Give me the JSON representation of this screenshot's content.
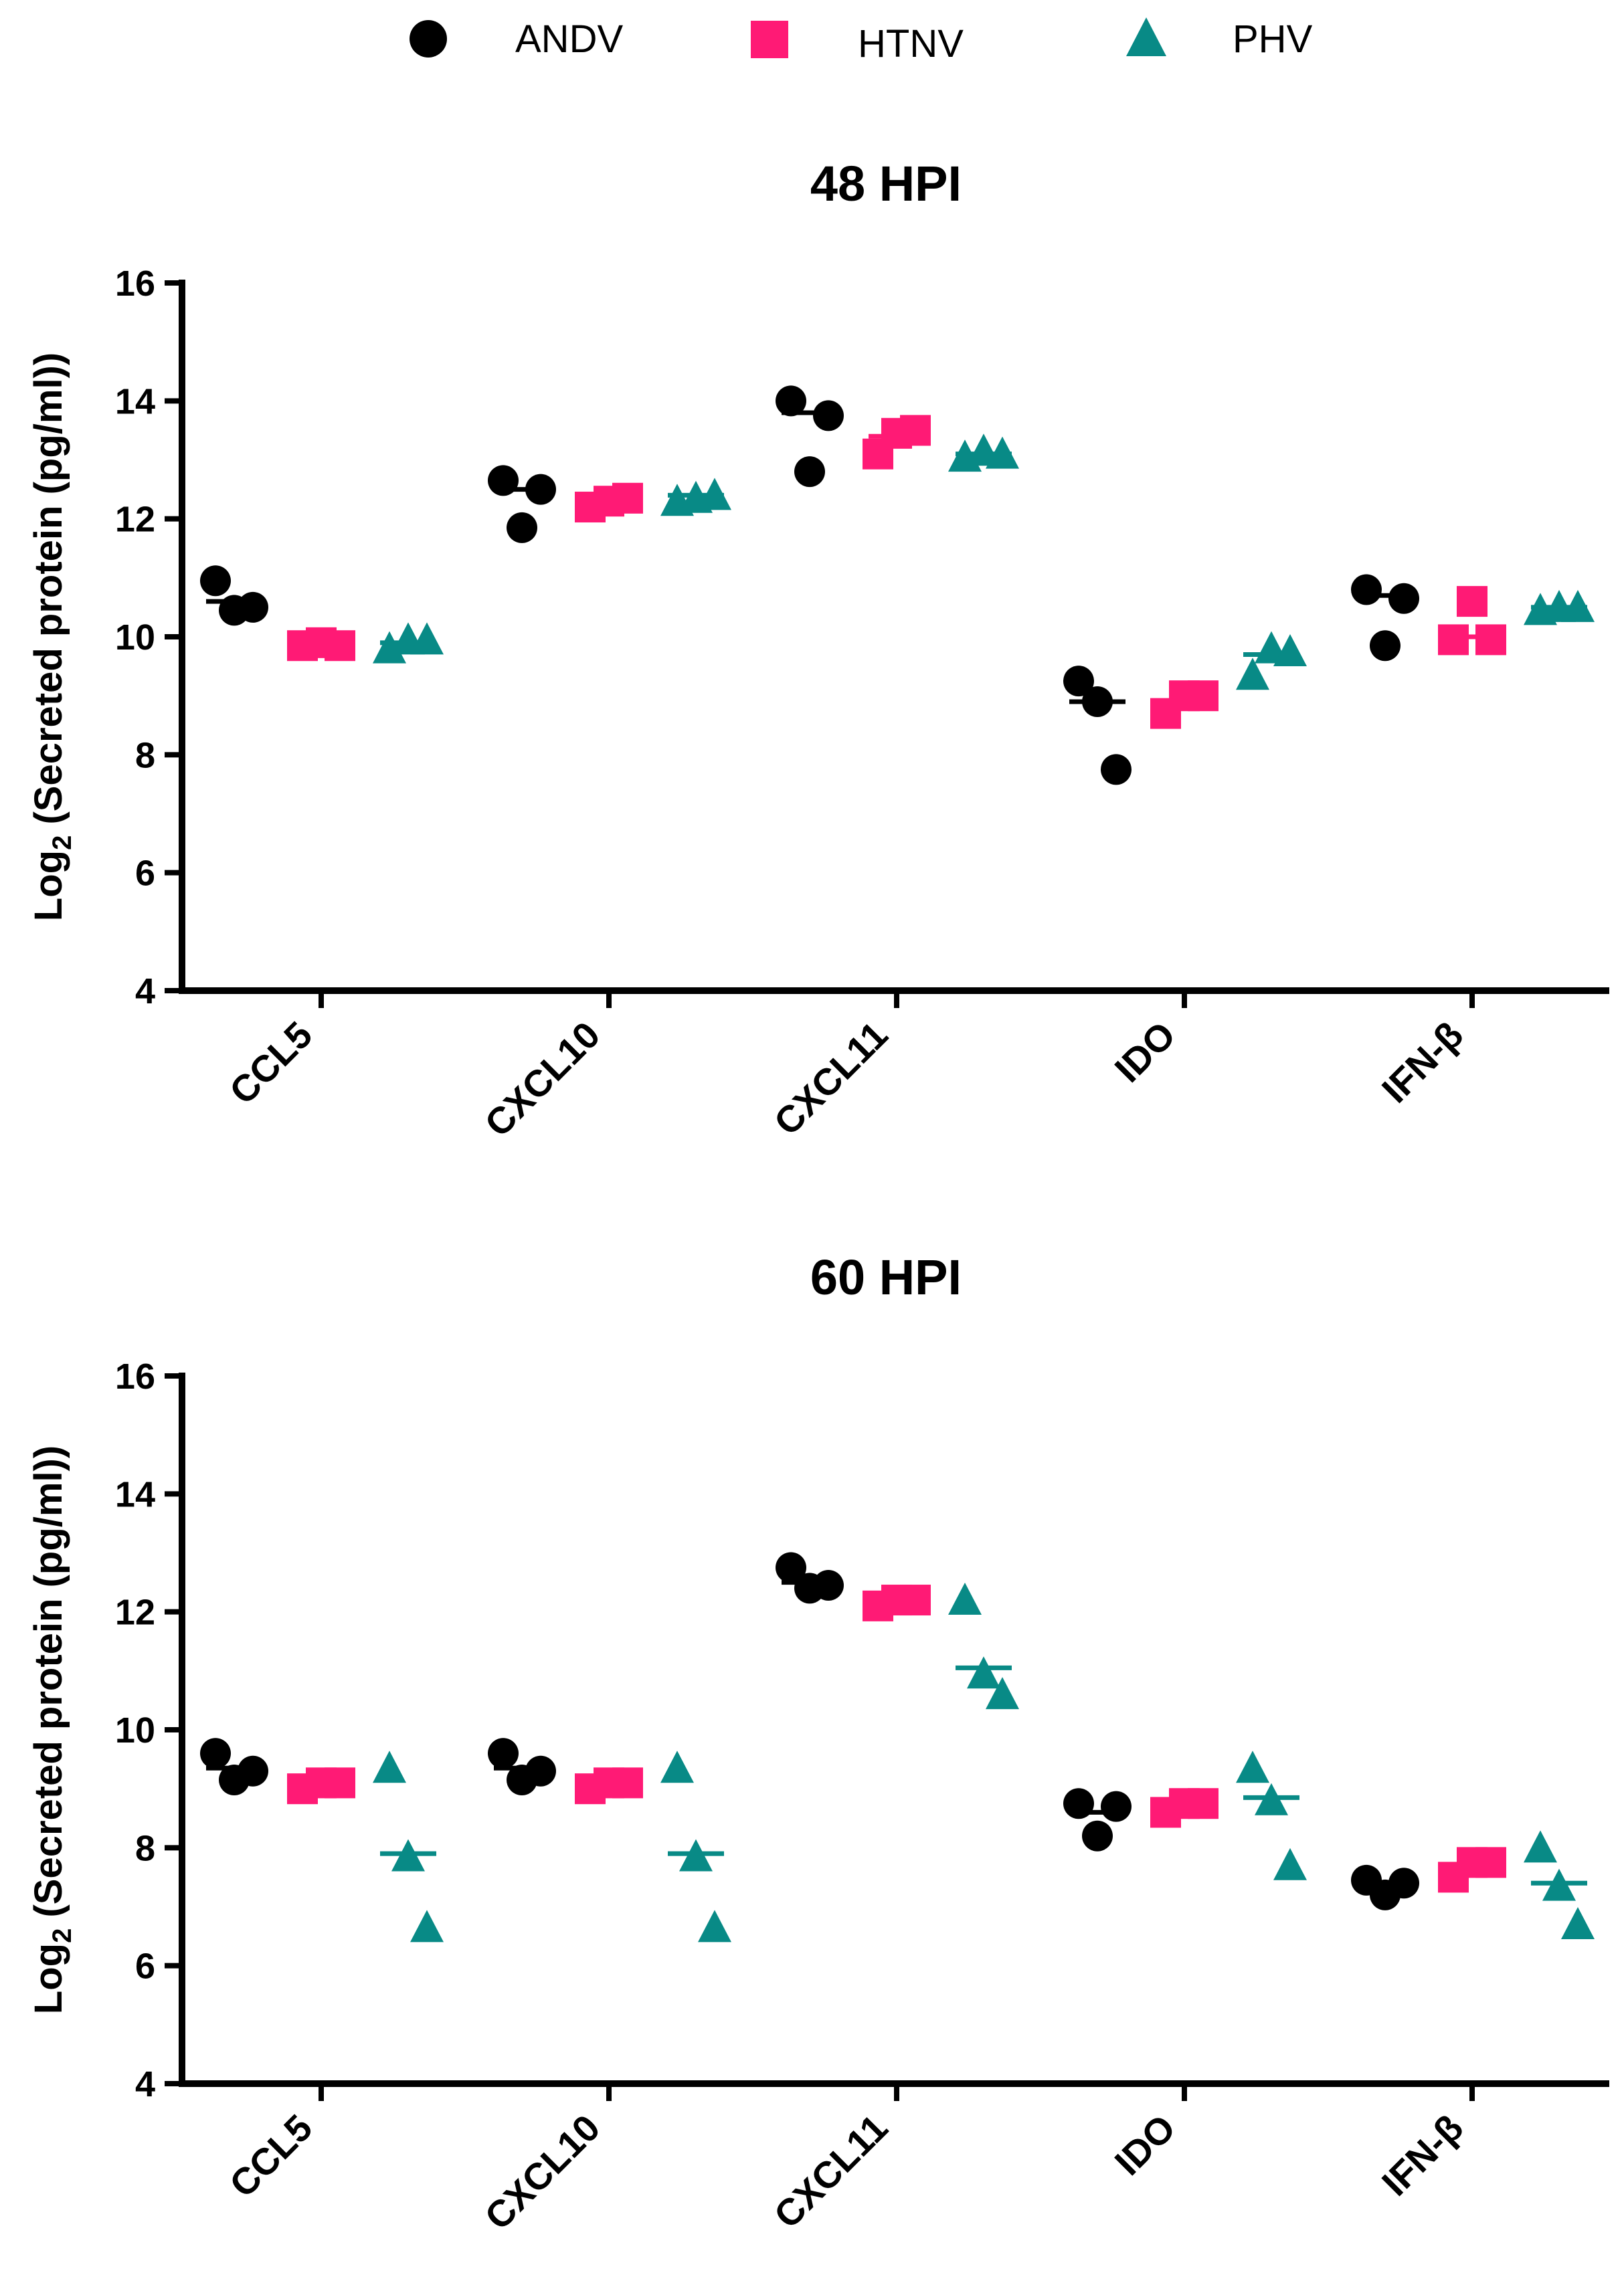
{
  "legend": [
    {
      "name": "ANDV",
      "color": "#000000",
      "marker": "circle"
    },
    {
      "name": "HTNV",
      "color": "#ff1a75",
      "marker": "square"
    },
    {
      "name": "PHV",
      "color": "#088a86",
      "marker": "triangle"
    }
  ],
  "chart_data": [
    {
      "type": "scatter",
      "title": "48 HPI",
      "ylabel": "Log2 (Secreted protein (pg/ml))",
      "ylabel_parts": {
        "pre": "Log",
        "sub": "2",
        "post": " (Secreted protein (pg/ml))"
      },
      "xlabel": "",
      "ylim": [
        4,
        16
      ],
      "yticks": [
        4,
        6,
        8,
        10,
        12,
        14,
        16
      ],
      "categories": [
        "CCL5",
        "CXCL10",
        "CXCL11",
        "IDO",
        "IFN-β"
      ],
      "series": [
        {
          "name": "ANDV",
          "values": [
            [
              10.95,
              10.45,
              10.5
            ],
            [
              12.65,
              11.85,
              12.5
            ],
            [
              14.0,
              12.8,
              13.75
            ],
            [
              9.25,
              8.9,
              7.75
            ],
            [
              10.8,
              9.85,
              10.65
            ]
          ],
          "means": [
            10.6,
            12.5,
            13.8,
            8.9,
            10.7
          ]
        },
        {
          "name": "HTNV",
          "values": [
            [
              9.85,
              9.9,
              9.85
            ],
            [
              12.2,
              12.3,
              12.35
            ],
            [
              13.1,
              13.45,
              13.5
            ],
            [
              8.7,
              9.0,
              9.0
            ],
            [
              9.95,
              10.6,
              9.95
            ]
          ],
          "means": [
            9.9,
            12.3,
            13.4,
            8.9,
            10.0
          ]
        },
        {
          "name": "PHV",
          "values": [
            [
              9.8,
              9.95,
              9.95
            ],
            [
              12.3,
              12.35,
              12.4
            ],
            [
              13.05,
              13.15,
              13.1
            ],
            [
              9.35,
              9.8,
              9.75
            ],
            [
              10.45,
              10.5,
              10.5
            ]
          ],
          "means": [
            9.9,
            12.4,
            13.1,
            9.7,
            10.5
          ]
        }
      ]
    },
    {
      "type": "scatter",
      "title": "60 HPI",
      "ylabel": "Log2 (Secreted protein (pg/ml))",
      "ylabel_parts": {
        "pre": "Log",
        "sub": "2",
        "post": " (Secreted protein (pg/ml))"
      },
      "xlabel": "",
      "ylim": [
        4,
        16
      ],
      "yticks": [
        4,
        6,
        8,
        10,
        12,
        14,
        16
      ],
      "categories": [
        "CCL5",
        "CXCL10",
        "CXCL11",
        "IDO",
        "IFN-β"
      ],
      "series": [
        {
          "name": "ANDV",
          "values": [
            [
              9.6,
              9.15,
              9.3
            ],
            [
              9.6,
              9.15,
              9.3
            ],
            [
              12.75,
              12.4,
              12.45
            ],
            [
              8.75,
              8.2,
              8.7
            ],
            [
              7.45,
              7.2,
              7.4
            ]
          ],
          "means": [
            9.35,
            9.35,
            12.5,
            8.6,
            7.35
          ]
        },
        {
          "name": "HTNV",
          "values": [
            [
              9.0,
              9.1,
              9.1
            ],
            [
              9.0,
              9.1,
              9.1
            ],
            [
              12.1,
              12.2,
              12.2
            ],
            [
              8.6,
              8.75,
              8.75
            ],
            [
              7.5,
              7.75,
              7.75
            ]
          ],
          "means": [
            9.05,
            9.05,
            12.2,
            8.7,
            7.65
          ]
        },
        {
          "name": "PHV",
          "values": [
            [
              9.35,
              7.85,
              6.65
            ],
            [
              9.35,
              7.85,
              6.65
            ],
            [
              12.2,
              10.95,
              10.6
            ],
            [
              9.35,
              8.8,
              7.7
            ],
            [
              8.0,
              7.35,
              6.7
            ]
          ],
          "means": [
            7.9,
            7.9,
            11.05,
            8.85,
            7.4
          ]
        }
      ]
    }
  ]
}
